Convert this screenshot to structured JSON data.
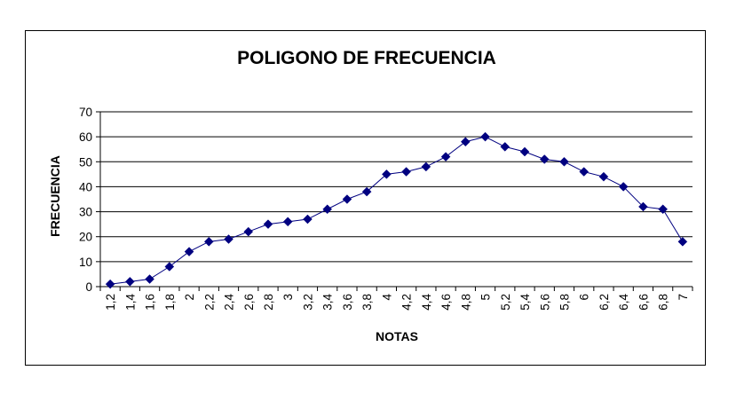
{
  "chart_data": {
    "type": "line",
    "title": "POLIGONO DE FRECUENCIA",
    "xlabel": "NOTAS",
    "ylabel": "FRECUENCIA",
    "categories": [
      "1,2",
      "1,4",
      "1,6",
      "1,8",
      "2",
      "2,2",
      "2,4",
      "2,6",
      "2,8",
      "3",
      "3,2",
      "3,4",
      "3,6",
      "3,8",
      "4",
      "4,2",
      "4,4",
      "4,6",
      "4,8",
      "5",
      "5,2",
      "5,4",
      "5,6",
      "5,8",
      "6",
      "6,2",
      "6,4",
      "6,6",
      "6,8",
      "7"
    ],
    "series": [
      {
        "values": [
          1,
          2,
          3,
          8,
          14,
          18,
          19,
          22,
          25,
          26,
          27,
          31,
          35,
          38,
          45,
          46,
          48,
          52,
          58,
          60,
          56,
          54,
          51,
          50,
          46,
          44,
          40,
          32,
          31,
          18
        ]
      }
    ],
    "ylim": [
      0,
      70
    ],
    "yticks": [
      0,
      10,
      20,
      30,
      40,
      50,
      60,
      70
    ],
    "grid": true,
    "legend": "none",
    "colors": {
      "line": "#000080",
      "marker": "#000080",
      "grid": "#000000"
    }
  }
}
